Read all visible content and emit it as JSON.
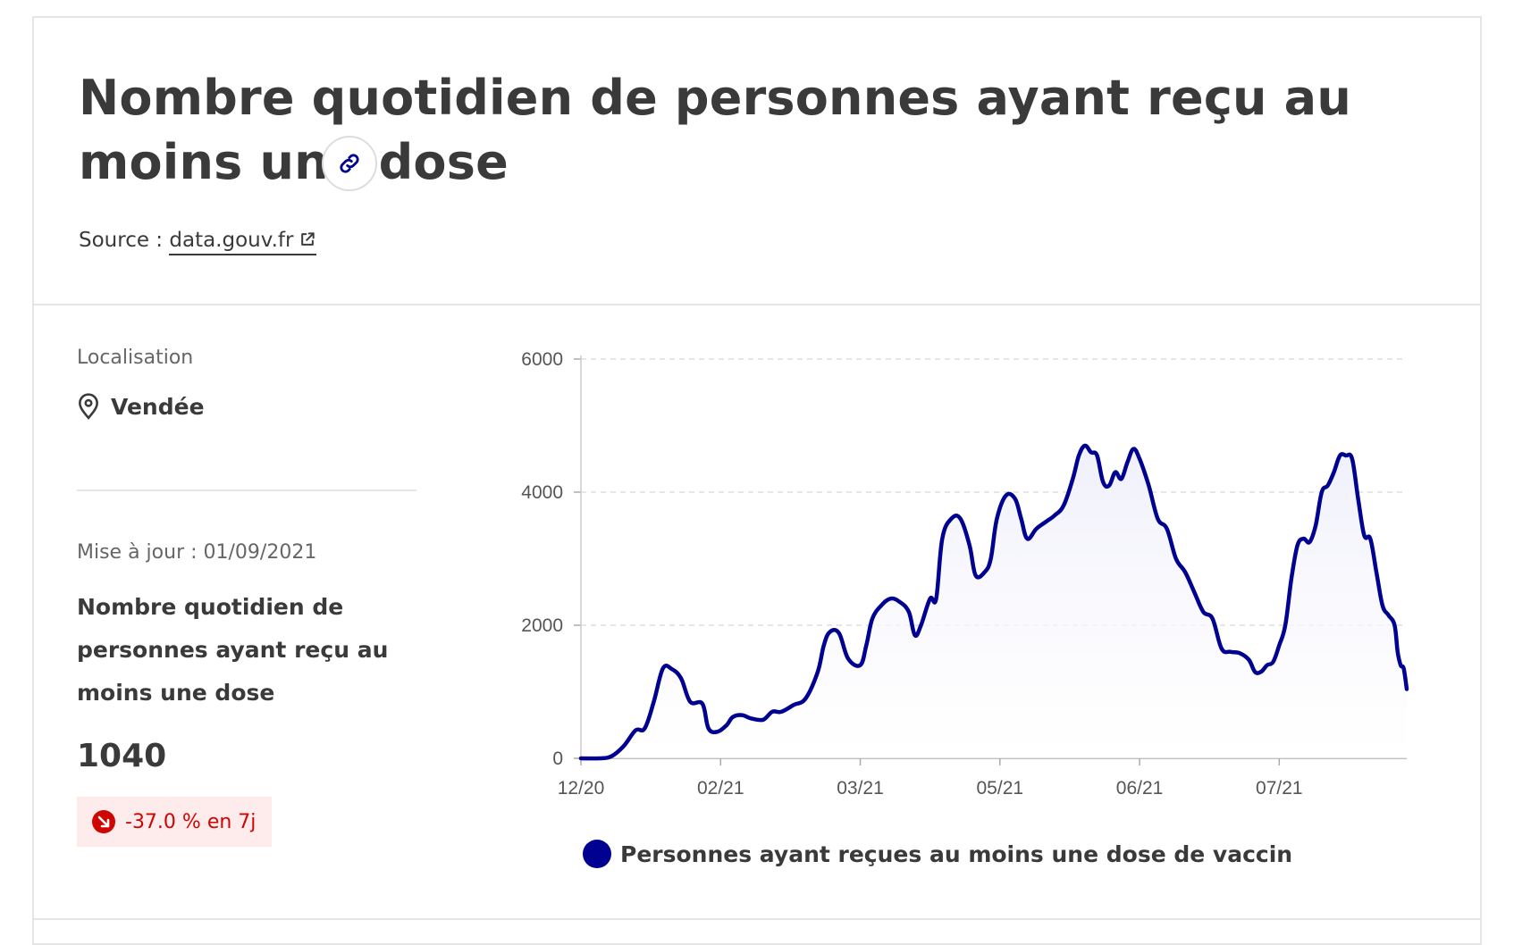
{
  "header": {
    "title": "Nombre quotidien de personnes ayant reçu au moins une dose",
    "source_prefix": "Source : ",
    "source_link": "data.gouv.fr"
  },
  "sidebar": {
    "location_label": "Localisation",
    "location_value": "Vendée",
    "update_text": "Mise à jour : 01/09/2021",
    "kpi_title": "Nombre quotidien de personnes ayant reçu au moins une dose",
    "kpi_value": "1040",
    "kpi_change": "-37.0 % en 7j"
  },
  "icons": {
    "link": "link-icon",
    "external": "external-link-icon",
    "location": "map-pin-icon",
    "trend": "arrow-down-right-icon"
  },
  "colors": {
    "series": "#000091",
    "fill": "#f0f0fb",
    "grid": "#dddddd",
    "badge_bg": "#fdeceb",
    "badge_text": "#ce0500"
  },
  "chart_data": {
    "type": "area",
    "title": "",
    "xlabel": "",
    "ylabel": "",
    "ylim": [
      0,
      6000
    ],
    "y_ticks": [
      "0",
      "2000",
      "4000",
      "6000"
    ],
    "x_ticks": [
      {
        "label": "12/20",
        "x": 0
      },
      {
        "label": "02/21",
        "x": 46
      },
      {
        "label": "03/21",
        "x": 92
      },
      {
        "label": "05/21",
        "x": 138
      },
      {
        "label": "06/21",
        "x": 184
      },
      {
        "label": "07/21",
        "x": 230
      }
    ],
    "xlim": [
      0,
      272
    ],
    "grid": "horizontal dashed",
    "legend_position": "bottom",
    "series": [
      {
        "name": "Personnes ayant reçues au moins une dose de vaccin",
        "points": [
          [
            0,
            0
          ],
          [
            6,
            0
          ],
          [
            10,
            30
          ],
          [
            14,
            180
          ],
          [
            18,
            420
          ],
          [
            21,
            450
          ],
          [
            24,
            850
          ],
          [
            27,
            1350
          ],
          [
            30,
            1340
          ],
          [
            33,
            1200
          ],
          [
            36,
            850
          ],
          [
            40,
            820
          ],
          [
            42,
            450
          ],
          [
            45,
            400
          ],
          [
            48,
            500
          ],
          [
            50,
            620
          ],
          [
            53,
            650
          ],
          [
            56,
            600
          ],
          [
            60,
            580
          ],
          [
            63,
            700
          ],
          [
            66,
            700
          ],
          [
            70,
            800
          ],
          [
            74,
            900
          ],
          [
            78,
            1300
          ],
          [
            80,
            1700
          ],
          [
            82,
            1900
          ],
          [
            85,
            1880
          ],
          [
            88,
            1500
          ],
          [
            92,
            1400
          ],
          [
            94,
            1700
          ],
          [
            96,
            2100
          ],
          [
            99,
            2300
          ],
          [
            102,
            2400
          ],
          [
            105,
            2350
          ],
          [
            108,
            2200
          ],
          [
            110,
            1850
          ],
          [
            112,
            2000
          ],
          [
            115,
            2400
          ],
          [
            117,
            2400
          ],
          [
            119,
            3300
          ],
          [
            122,
            3600
          ],
          [
            125,
            3600
          ],
          [
            128,
            3200
          ],
          [
            130,
            2750
          ],
          [
            133,
            2800
          ],
          [
            135,
            3000
          ],
          [
            137,
            3600
          ],
          [
            140,
            3950
          ],
          [
            143,
            3900
          ],
          [
            145,
            3600
          ],
          [
            147,
            3300
          ],
          [
            150,
            3450
          ],
          [
            153,
            3550
          ],
          [
            156,
            3650
          ],
          [
            159,
            3800
          ],
          [
            162,
            4200
          ],
          [
            164,
            4550
          ],
          [
            166,
            4700
          ],
          [
            168,
            4600
          ],
          [
            170,
            4550
          ],
          [
            172,
            4150
          ],
          [
            174,
            4100
          ],
          [
            176,
            4300
          ],
          [
            178,
            4200
          ],
          [
            180,
            4450
          ],
          [
            182,
            4650
          ],
          [
            184,
            4500
          ],
          [
            187,
            4100
          ],
          [
            190,
            3600
          ],
          [
            193,
            3450
          ],
          [
            196,
            3000
          ],
          [
            199,
            2800
          ],
          [
            202,
            2500
          ],
          [
            205,
            2200
          ],
          [
            208,
            2100
          ],
          [
            211,
            1650
          ],
          [
            214,
            1600
          ],
          [
            217,
            1580
          ],
          [
            220,
            1480
          ],
          [
            222,
            1300
          ],
          [
            224,
            1300
          ],
          [
            226,
            1400
          ],
          [
            228,
            1450
          ],
          [
            230,
            1700
          ],
          [
            232,
            2000
          ],
          [
            234,
            2700
          ],
          [
            236,
            3200
          ],
          [
            238,
            3300
          ],
          [
            240,
            3250
          ],
          [
            242,
            3500
          ],
          [
            244,
            4000
          ],
          [
            246,
            4100
          ],
          [
            248,
            4300
          ],
          [
            250,
            4550
          ],
          [
            252,
            4550
          ],
          [
            254,
            4500
          ],
          [
            256,
            3900
          ],
          [
            258,
            3350
          ],
          [
            260,
            3300
          ],
          [
            262,
            2800
          ],
          [
            264,
            2300
          ],
          [
            266,
            2150
          ],
          [
            268,
            2000
          ],
          [
            269,
            1600
          ],
          [
            270,
            1400
          ],
          [
            271,
            1350
          ],
          [
            272,
            1040
          ]
        ]
      }
    ]
  }
}
